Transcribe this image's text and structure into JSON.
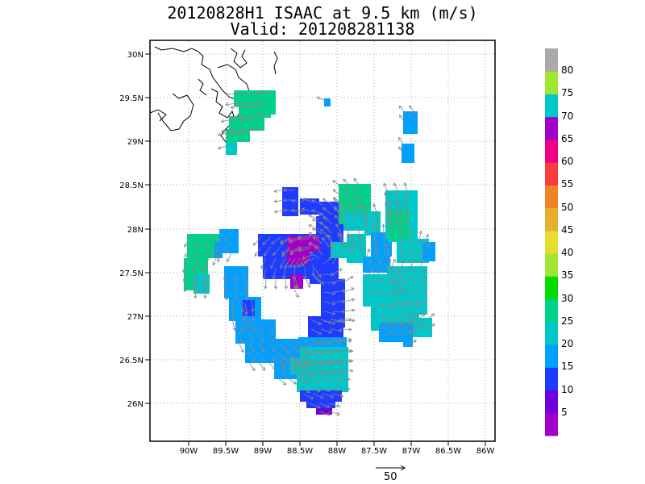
{
  "title": {
    "line1": "20120828H1 ISAAC at 9.5 km (m/s)",
    "line2": "Valid: 201208281138"
  },
  "lat_labels": [
    "30N",
    "29.5N",
    "29N",
    "28.5N",
    "28N",
    "27.5N",
    "27N",
    "26.5N",
    "26N"
  ],
  "lon_labels": [
    "90W",
    "89.5W",
    "89W",
    "88.5W",
    "88W",
    "87.5W",
    "87W",
    "86.5W",
    "86W"
  ],
  "colorbar": {
    "labels": [
      "5",
      "10",
      "15",
      "20",
      "25",
      "30",
      "35",
      "40",
      "45",
      "50",
      "55",
      "60",
      "65",
      "70",
      "75",
      "80"
    ],
    "colors": [
      "#a000c8",
      "#6e00dc",
      "#1e3cff",
      "#00a0ff",
      "#00c8c8",
      "#00d28c",
      "#00dc00",
      "#a0e632",
      "#e6dc32",
      "#e6af2d",
      "#f08228",
      "#fa3c3c",
      "#f00082",
      "#a000c8",
      "#00c8c8",
      "#a0e632",
      "#aaaaaa"
    ]
  },
  "reference_vector": {
    "value": "50"
  },
  "wind_colors": {
    "purple": "#a000c8",
    "blue": "#1e3cff",
    "lightblue": "#00a0ff",
    "cyan": "#00c8c8",
    "green": "#00d28c"
  }
}
